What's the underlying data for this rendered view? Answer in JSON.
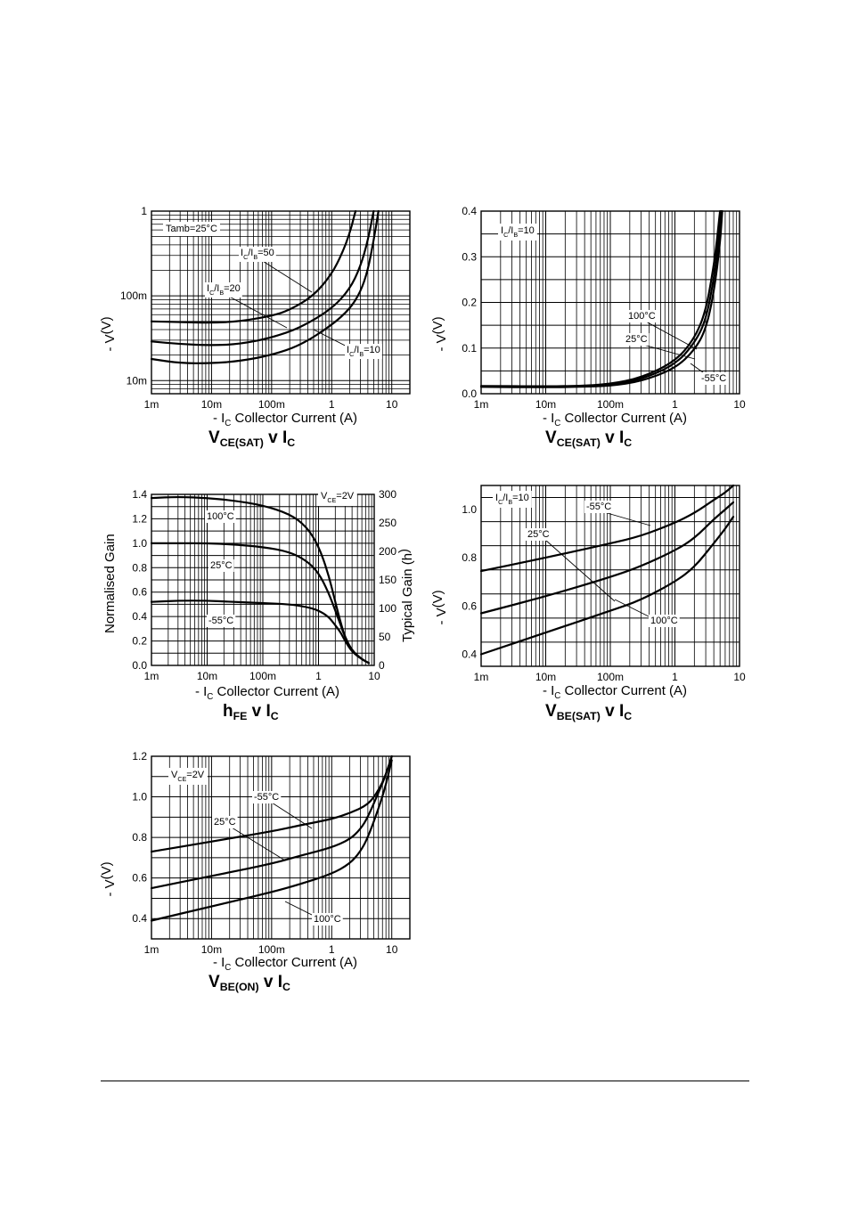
{
  "footer": {},
  "chart_data": [
    {
      "id": "vcesat",
      "type": "line",
      "title": {
        "main": "V",
        "sub": "CE(SAT)",
        "mid": " v I",
        "sub2": "C"
      },
      "xlabel": {
        "pre": "- I",
        "sub": "C",
        "post": "Collector Current (A)"
      },
      "ylabel": {
        "pre": "- V",
        "sub": "CE(SAT)",
        "post": "(V)"
      },
      "x_scale": "log",
      "y_scale": "log",
      "xlim": [
        0.001,
        20
      ],
      "ylim": [
        0.007,
        1
      ],
      "x_ticks": [
        {
          "v": 0.001,
          "label": "1m"
        },
        {
          "v": 0.01,
          "label": "10m"
        },
        {
          "v": 0.1,
          "label": "100m"
        },
        {
          "v": 1,
          "label": "1"
        },
        {
          "v": 10,
          "label": "10"
        }
      ],
      "y_ticks": [
        {
          "v": 0.01,
          "label": "10m"
        },
        {
          "v": 0.1,
          "label": "100m"
        },
        {
          "v": 1,
          "label": "1"
        }
      ],
      "grid": true,
      "annotations": [
        "Tamb=25°C"
      ],
      "series": [
        {
          "name": "IC/IB=50",
          "label": {
            "pre": "I",
            "s1": "C",
            "mid": "/I",
            "s2": "B",
            "post": "=50"
          },
          "x": [
            0.001,
            0.003,
            0.01,
            0.03,
            0.1,
            0.2,
            0.5,
            1,
            1.5,
            2,
            2.5
          ],
          "y": [
            0.05,
            0.049,
            0.048,
            0.05,
            0.058,
            0.068,
            0.1,
            0.18,
            0.32,
            0.55,
            1.0
          ]
        },
        {
          "name": "IC/IB=20",
          "label": {
            "pre": "I",
            "s1": "C",
            "mid": "/I",
            "s2": "B",
            "post": "=20"
          },
          "x": [
            0.001,
            0.003,
            0.01,
            0.03,
            0.1,
            0.3,
            1,
            2,
            3,
            4,
            5
          ],
          "y": [
            0.029,
            0.027,
            0.026,
            0.027,
            0.032,
            0.042,
            0.07,
            0.12,
            0.22,
            0.45,
            1.0
          ]
        },
        {
          "name": "IC/IB=10",
          "label": {
            "pre": "I",
            "s1": "C",
            "mid": "/I",
            "s2": "B",
            "post": "=10"
          },
          "x": [
            0.001,
            0.003,
            0.01,
            0.03,
            0.1,
            0.3,
            1,
            2,
            3,
            4,
            5,
            6
          ],
          "y": [
            0.018,
            0.016,
            0.016,
            0.017,
            0.02,
            0.026,
            0.045,
            0.07,
            0.11,
            0.2,
            0.45,
            1.0
          ]
        }
      ]
    },
    {
      "id": "vcesat-lin",
      "type": "line",
      "title": {
        "main": "V",
        "sub": "CE(SAT)",
        "mid": " v I",
        "sub2": "C"
      },
      "xlabel": {
        "pre": "- I",
        "sub": "C",
        "post": "Collector Current (A)"
      },
      "ylabel": {
        "pre": "- V",
        "sub": "CE(SAT)",
        "post": "(V)"
      },
      "x_scale": "log",
      "y_scale": "linear",
      "xlim": [
        0.001,
        10
      ],
      "ylim": [
        0,
        0.4
      ],
      "x_ticks": [
        {
          "v": 0.001,
          "label": "1m"
        },
        {
          "v": 0.01,
          "label": "10m"
        },
        {
          "v": 0.1,
          "label": "100m"
        },
        {
          "v": 1,
          "label": "1"
        },
        {
          "v": 10,
          "label": "10"
        }
      ],
      "y_ticks": [
        {
          "v": 0.0,
          "label": "0.0"
        },
        {
          "v": 0.1,
          "label": "0.1"
        },
        {
          "v": 0.2,
          "label": "0.2"
        },
        {
          "v": 0.3,
          "label": "0.3"
        },
        {
          "v": 0.4,
          "label": "0.4"
        }
      ],
      "grid": true,
      "annotations": [
        {
          "pre": "I",
          "s1": "C",
          "mid": "/I",
          "s2": "B",
          "post": "=10"
        }
      ],
      "series": [
        {
          "name": "100°C",
          "x": [
            0.001,
            0.01,
            0.03,
            0.1,
            0.3,
            1,
            2,
            3,
            4,
            4.5,
            5
          ],
          "y": [
            0.017,
            0.016,
            0.017,
            0.021,
            0.035,
            0.07,
            0.12,
            0.18,
            0.28,
            0.34,
            0.4
          ]
        },
        {
          "name": "25°C",
          "x": [
            0.001,
            0.01,
            0.03,
            0.1,
            0.3,
            1,
            2,
            3,
            4,
            4.7,
            5.2
          ],
          "y": [
            0.016,
            0.015,
            0.016,
            0.019,
            0.031,
            0.063,
            0.11,
            0.16,
            0.25,
            0.33,
            0.4
          ]
        },
        {
          "name": "-55°C",
          "x": [
            0.001,
            0.01,
            0.03,
            0.1,
            0.3,
            1,
            2,
            3,
            4,
            5,
            5.4
          ],
          "y": [
            0.015,
            0.014,
            0.015,
            0.017,
            0.027,
            0.055,
            0.095,
            0.14,
            0.22,
            0.33,
            0.4
          ]
        }
      ]
    },
    {
      "id": "hfe",
      "type": "line",
      "title": {
        "main": "h",
        "sub": "FE",
        "mid": " v I",
        "sub2": "C"
      },
      "xlabel": {
        "pre": "- I",
        "sub": "C",
        "post": "Collector Current (A)"
      },
      "ylabel": "Normalised Gain",
      "y2label": {
        "pre": "Typical Gain (h",
        "sub": "FE",
        "post": ")"
      },
      "x_scale": "log",
      "y_scale": "linear",
      "xlim": [
        0.001,
        10
      ],
      "ylim": [
        0,
        1.4
      ],
      "x_ticks": [
        {
          "v": 0.001,
          "label": "1m"
        },
        {
          "v": 0.01,
          "label": "10m"
        },
        {
          "v": 0.1,
          "label": "100m"
        },
        {
          "v": 1,
          "label": "1"
        },
        {
          "v": 10,
          "label": "10"
        }
      ],
      "y_ticks": [
        {
          "v": 0,
          "label": "0.0"
        },
        {
          "v": 0.2,
          "label": "0.2"
        },
        {
          "v": 0.4,
          "label": "0.4"
        },
        {
          "v": 0.6,
          "label": "0.6"
        },
        {
          "v": 0.8,
          "label": "0.8"
        },
        {
          "v": 1.0,
          "label": "1.0"
        },
        {
          "v": 1.2,
          "label": "1.2"
        },
        {
          "v": 1.4,
          "label": "1.4"
        }
      ],
      "y2lim": [
        0,
        300
      ],
      "y2_ticks": [
        {
          "v": 0,
          "label": "0"
        },
        {
          "v": 50,
          "label": "50"
        },
        {
          "v": 100,
          "label": "100"
        },
        {
          "v": 150,
          "label": "150"
        },
        {
          "v": 200,
          "label": "200"
        },
        {
          "v": 250,
          "label": "250"
        },
        {
          "v": 300,
          "label": "300"
        }
      ],
      "grid": true,
      "annotations": [
        {
          "pre": "V",
          "s1": "CE",
          "post": "=2V"
        }
      ],
      "series": [
        {
          "name": "100°C",
          "x": [
            0.001,
            0.003,
            0.01,
            0.03,
            0.1,
            0.3,
            0.6,
            1,
            1.5,
            2,
            2.5,
            3,
            4,
            6,
            8
          ],
          "y": [
            1.37,
            1.38,
            1.37,
            1.35,
            1.31,
            1.24,
            1.14,
            0.98,
            0.75,
            0.52,
            0.35,
            0.23,
            0.12,
            0.05,
            0.02
          ]
        },
        {
          "name": "25°C",
          "x": [
            0.001,
            0.003,
            0.01,
            0.03,
            0.1,
            0.3,
            0.6,
            1,
            1.5,
            2,
            2.5,
            3,
            4,
            6,
            8
          ],
          "y": [
            1.0,
            1.0,
            1.0,
            0.99,
            0.97,
            0.93,
            0.86,
            0.76,
            0.6,
            0.45,
            0.33,
            0.23,
            0.12,
            0.05,
            0.02
          ]
        },
        {
          "name": "-55°C",
          "x": [
            0.001,
            0.003,
            0.01,
            0.03,
            0.1,
            0.3,
            0.6,
            1,
            1.5,
            2,
            2.5,
            3,
            4,
            6,
            8
          ],
          "y": [
            0.52,
            0.53,
            0.53,
            0.52,
            0.51,
            0.5,
            0.48,
            0.45,
            0.4,
            0.33,
            0.27,
            0.2,
            0.11,
            0.05,
            0.02
          ]
        }
      ]
    },
    {
      "id": "vbesat",
      "type": "line",
      "title": {
        "main": "V",
        "sub": "BE(SAT)",
        "mid": " v I",
        "sub2": "C"
      },
      "xlabel": {
        "pre": "- I",
        "sub": "C",
        "post": "Collector Current (A)"
      },
      "ylabel": {
        "pre": "- V",
        "sub": "BE(SAT)",
        "post": "(V)"
      },
      "x_scale": "log",
      "y_scale": "linear",
      "xlim": [
        0.001,
        10
      ],
      "ylim": [
        0.35,
        1.1
      ],
      "x_ticks": [
        {
          "v": 0.001,
          "label": "1m"
        },
        {
          "v": 0.01,
          "label": "10m"
        },
        {
          "v": 0.1,
          "label": "100m"
        },
        {
          "v": 1,
          "label": "1"
        },
        {
          "v": 10,
          "label": "10"
        }
      ],
      "y_ticks": [
        {
          "v": 0.4,
          "label": "0.4"
        },
        {
          "v": 0.6,
          "label": "0.6"
        },
        {
          "v": 0.8,
          "label": "0.8"
        },
        {
          "v": 1.0,
          "label": "1.0"
        }
      ],
      "grid": true,
      "annotations": [
        {
          "pre": "I",
          "s1": "C",
          "mid": "/I",
          "s2": "B",
          "post": "=10"
        }
      ],
      "series": [
        {
          "name": "-55°C",
          "x": [
            0.001,
            0.01,
            0.1,
            0.3,
            1,
            2,
            4,
            6,
            8
          ],
          "y": [
            0.745,
            0.8,
            0.86,
            0.89,
            0.945,
            0.985,
            1.04,
            1.07,
            1.1
          ]
        },
        {
          "name": "25°C",
          "x": [
            0.001,
            0.01,
            0.1,
            0.3,
            1,
            2,
            4,
            6,
            8
          ],
          "y": [
            0.57,
            0.64,
            0.72,
            0.765,
            0.83,
            0.88,
            0.96,
            1.0,
            1.03
          ]
        },
        {
          "name": "100°C",
          "x": [
            0.001,
            0.01,
            0.1,
            0.3,
            1,
            2,
            4,
            6,
            8
          ],
          "y": [
            0.4,
            0.49,
            0.58,
            0.625,
            0.7,
            0.76,
            0.86,
            0.92,
            0.97
          ]
        }
      ]
    },
    {
      "id": "vbeon",
      "type": "line",
      "title": {
        "main": "V",
        "sub": "BE(ON)",
        "mid": " v I",
        "sub2": "C"
      },
      "xlabel": {
        "pre": "- I",
        "sub": "C",
        "post": "Collector Current (A)"
      },
      "ylabel": {
        "pre": "- V",
        "sub": "BE(ON)",
        "post": "(V)"
      },
      "x_scale": "log",
      "y_scale": "linear",
      "xlim": [
        0.001,
        20
      ],
      "ylim": [
        0.3,
        1.2
      ],
      "x_ticks": [
        {
          "v": 0.001,
          "label": "1m"
        },
        {
          "v": 0.01,
          "label": "10m"
        },
        {
          "v": 0.1,
          "label": "100m"
        },
        {
          "v": 1,
          "label": "1"
        },
        {
          "v": 10,
          "label": "10"
        }
      ],
      "y_ticks": [
        {
          "v": 0.4,
          "label": "0.4"
        },
        {
          "v": 0.6,
          "label": "0.6"
        },
        {
          "v": 0.8,
          "label": "0.8"
        },
        {
          "v": 1.0,
          "label": "1.0"
        },
        {
          "v": 1.2,
          "label": "1.2"
        }
      ],
      "grid": true,
      "annotations": [
        {
          "pre": "V",
          "s1": "CE",
          "post": "=2V"
        }
      ],
      "series": [
        {
          "name": "-55°C",
          "x": [
            0.001,
            0.01,
            0.1,
            0.3,
            1,
            2,
            4,
            6,
            8,
            10
          ],
          "y": [
            0.73,
            0.78,
            0.83,
            0.86,
            0.89,
            0.92,
            0.96,
            1.03,
            1.11,
            1.2
          ]
        },
        {
          "name": "25°C",
          "x": [
            0.001,
            0.01,
            0.1,
            0.3,
            1,
            2,
            3,
            4,
            6,
            8,
            10
          ],
          "y": [
            0.55,
            0.61,
            0.67,
            0.71,
            0.75,
            0.79,
            0.84,
            0.9,
            1.02,
            1.11,
            1.2
          ]
        },
        {
          "name": "100°C",
          "x": [
            0.001,
            0.01,
            0.1,
            0.3,
            1,
            2,
            3,
            4,
            6,
            8,
            10
          ],
          "y": [
            0.39,
            0.46,
            0.53,
            0.57,
            0.62,
            0.67,
            0.73,
            0.8,
            0.94,
            1.06,
            1.18
          ]
        }
      ]
    }
  ]
}
